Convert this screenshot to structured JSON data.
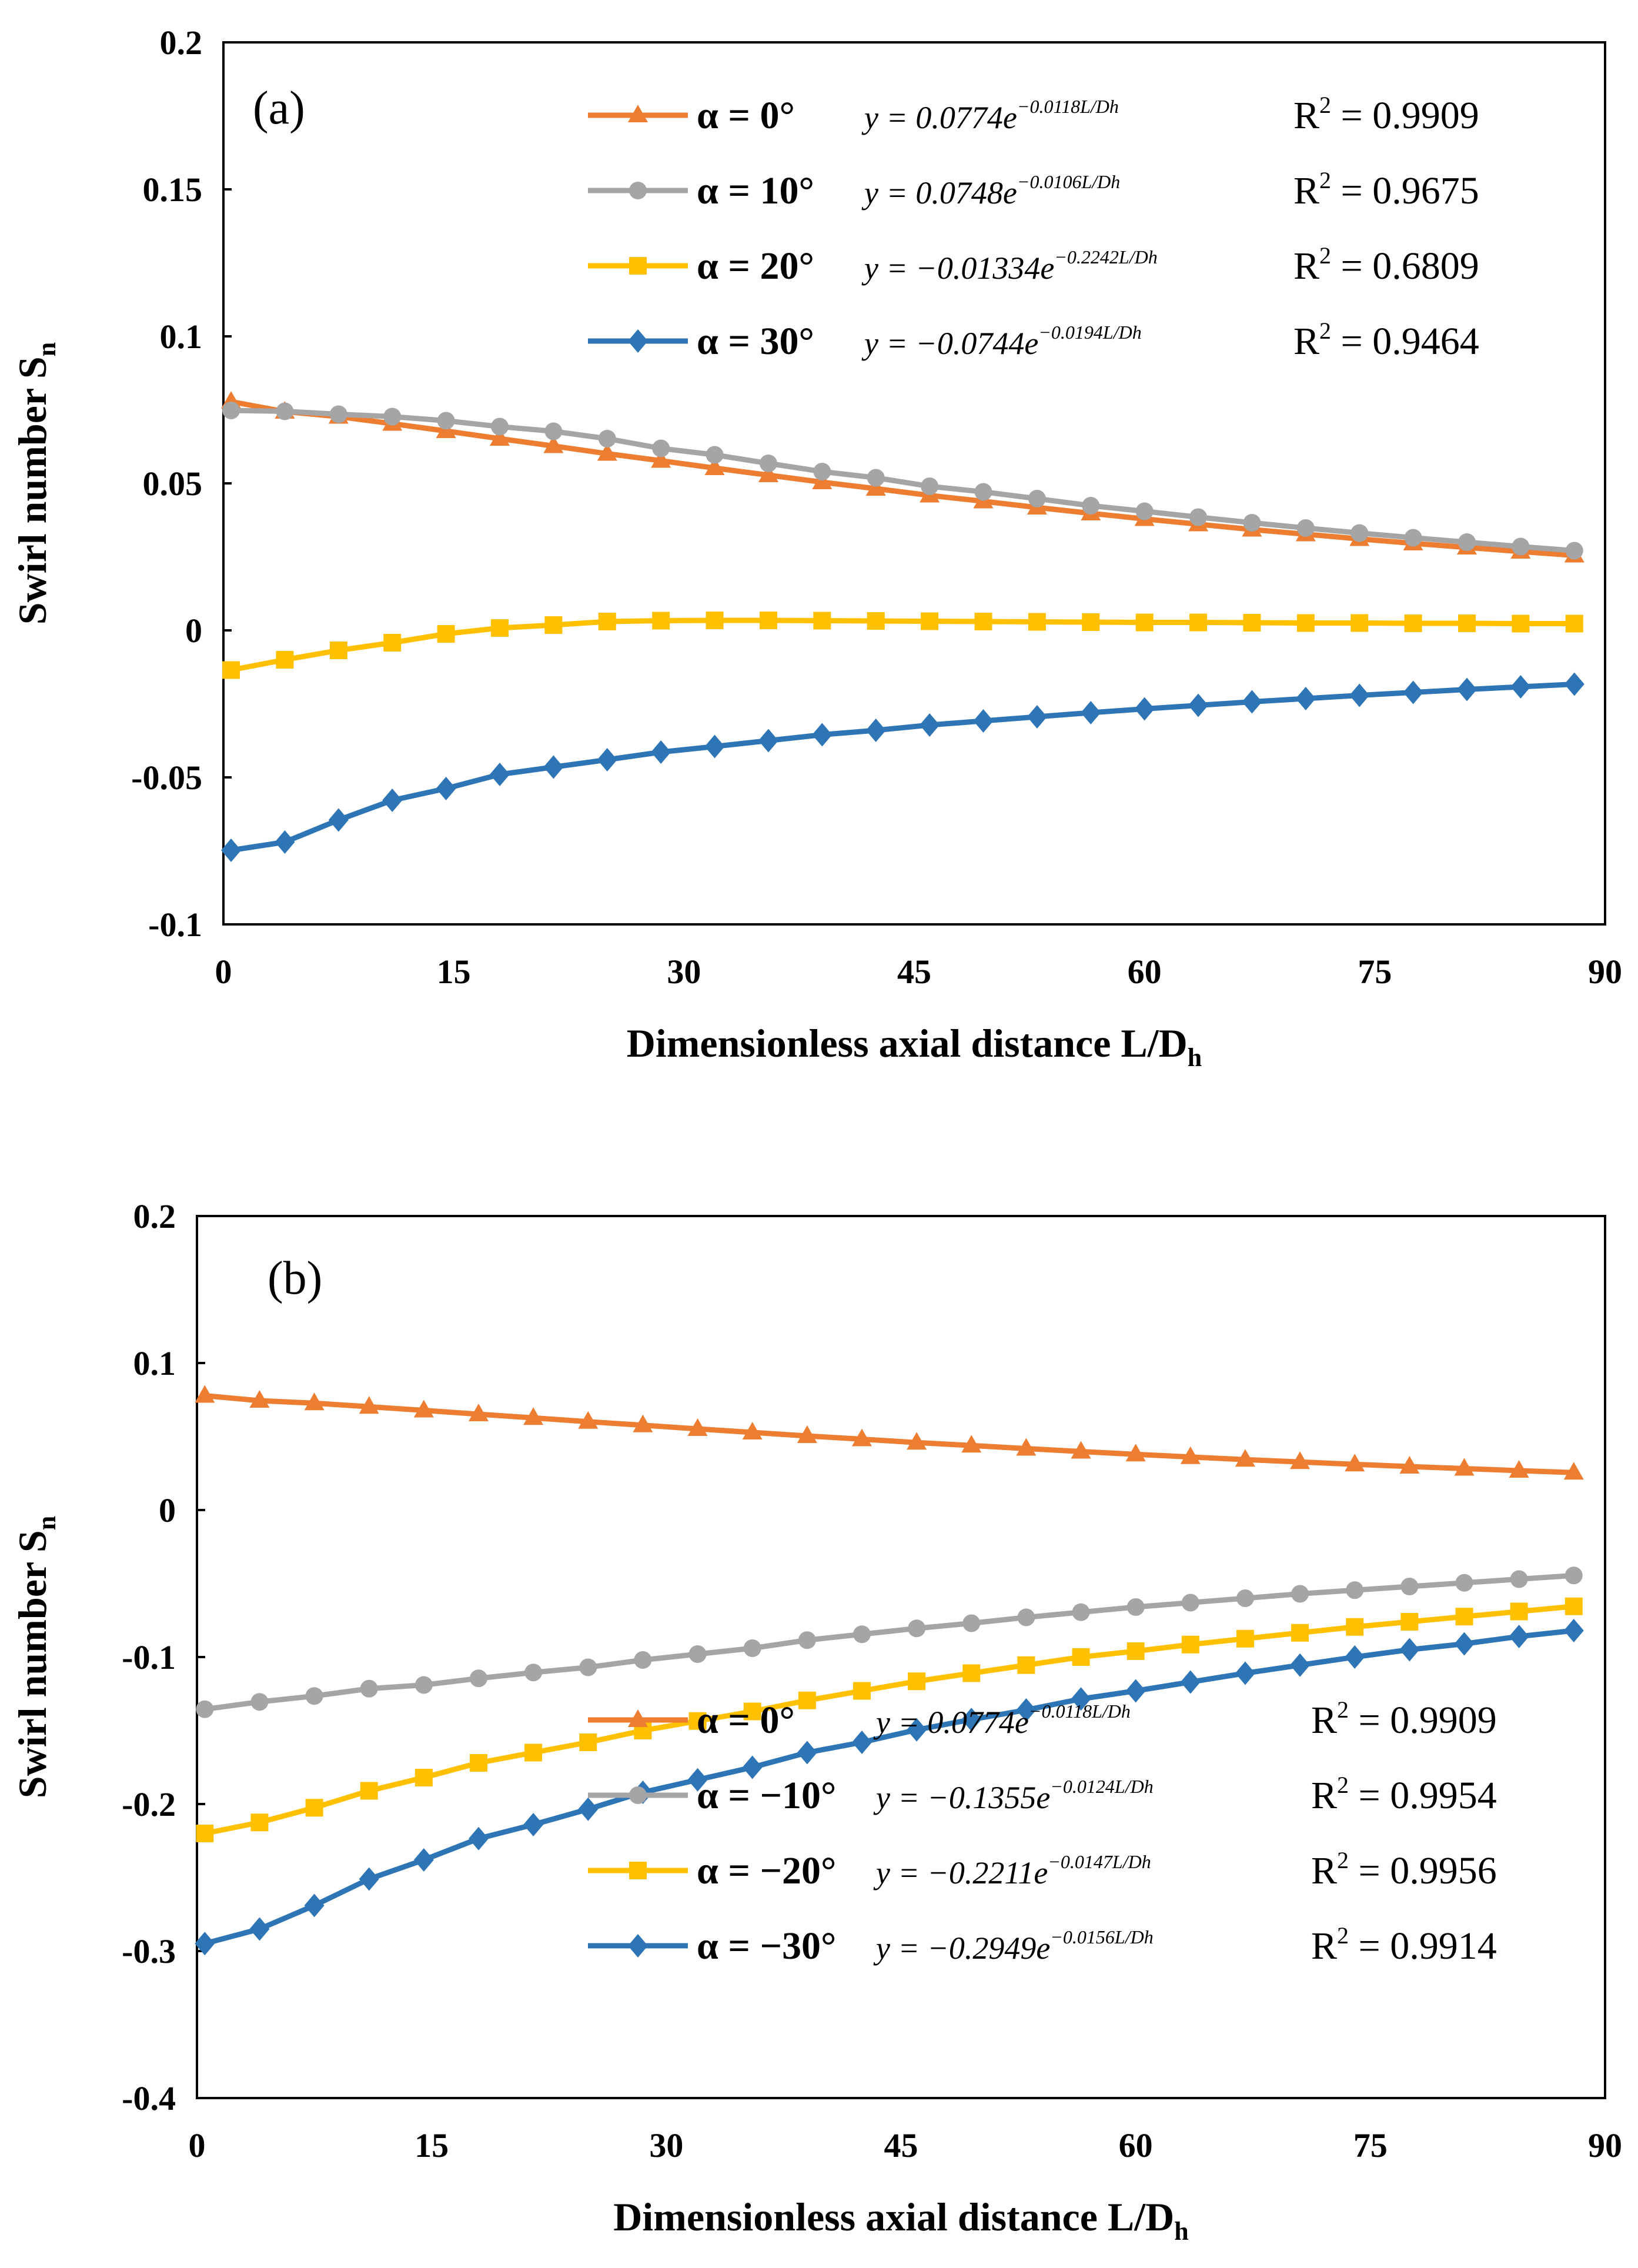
{
  "figure": {
    "x_axis_title": "Dimensionless axial distance L/D",
    "x_axis_title_sub": "h",
    "y_axis_title": "Swirl number S",
    "y_axis_title_sub": "n"
  },
  "chart_data": [
    {
      "panel_label": "(a)",
      "type": "line",
      "xlim": [
        0,
        90
      ],
      "ylim": [
        -0.1,
        0.2
      ],
      "x_ticks": [
        0,
        15,
        30,
        45,
        60,
        75,
        90
      ],
      "x_tick_labels": [
        "0",
        "15",
        "30",
        "45",
        "60",
        "75",
        "90"
      ],
      "y_ticks": [
        -0.1,
        -0.05,
        0,
        0.05,
        0.1,
        0.15,
        0.2
      ],
      "y_tick_labels": [
        "-0.1",
        "-0.05",
        "0",
        "0.05",
        "0.1",
        "0.15",
        "0.2"
      ],
      "legend_position": "top-right",
      "series": [
        {
          "name": "α = 0°",
          "color": "#ED7D31",
          "marker": "triangle",
          "fit": "y = 0.0774e",
          "fit_exp": "−0.0118L/Dh",
          "r2_label": "R",
          "r2_value": " = 0.9909",
          "x": [
            0.5,
            4,
            7.5,
            11,
            14.5,
            18,
            21.5,
            25,
            28.5,
            32,
            35.5,
            39,
            42.5,
            46,
            49.5,
            53,
            56.5,
            60,
            63.5,
            67,
            70.5,
            74,
            77.5,
            81,
            84.5,
            88
          ],
          "y": [
            0.0778,
            0.0744,
            0.0727,
            0.0703,
            0.0678,
            0.0652,
            0.0627,
            0.0601,
            0.0577,
            0.0552,
            0.0528,
            0.0504,
            0.0482,
            0.0459,
            0.0439,
            0.0418,
            0.0398,
            0.0379,
            0.0361,
            0.0343,
            0.0327,
            0.0311,
            0.0296,
            0.0282,
            0.0268,
            0.0255
          ]
        },
        {
          "name": "α = 10°",
          "color": "#A5A5A5",
          "marker": "circle",
          "fit": "y = 0.0748e",
          "fit_exp": "−0.0106L/Dh",
          "r2_label": "R",
          "r2_value": " = 0.9675",
          "x": [
            0.5,
            4,
            7.5,
            11,
            14.5,
            18,
            21.5,
            25,
            28.5,
            32,
            35.5,
            39,
            42.5,
            46,
            49.5,
            53,
            56.5,
            60,
            63.5,
            67,
            70.5,
            74,
            77.5,
            81,
            84.5,
            88
          ],
          "y": [
            0.0748,
            0.0745,
            0.0735,
            0.0727,
            0.0713,
            0.0693,
            0.0677,
            0.0652,
            0.0619,
            0.0597,
            0.0568,
            0.054,
            0.0519,
            0.049,
            0.0471,
            0.0448,
            0.0424,
            0.0405,
            0.0385,
            0.0366,
            0.0348,
            0.0331,
            0.0315,
            0.03,
            0.0285,
            0.0271
          ]
        },
        {
          "name": "α = 20°",
          "color": "#FFC000",
          "marker": "square",
          "fit": "y = −0.01334e",
          "fit_exp": "−0.2242L/Dh",
          "r2_label": "R",
          "r2_value": " = 0.6809",
          "x": [
            0.5,
            4,
            7.5,
            11,
            14.5,
            18,
            21.5,
            25,
            28.5,
            32,
            35.5,
            39,
            42.5,
            46,
            49.5,
            53,
            56.5,
            60,
            63.5,
            67,
            70.5,
            74,
            77.5,
            81,
            84.5,
            88
          ],
          "y": [
            -0.0135,
            -0.01,
            -0.0068,
            -0.0042,
            -0.0012,
            0.0008,
            0.0018,
            0.003,
            0.0033,
            0.0034,
            0.0034,
            0.0033,
            0.0032,
            0.0031,
            0.003,
            0.0029,
            0.0028,
            0.0027,
            0.0027,
            0.0026,
            0.0025,
            0.0025,
            0.0024,
            0.0024,
            0.0023,
            0.0023
          ]
        },
        {
          "name": "α = 30°",
          "color": "#2E75B6",
          "marker": "diamond",
          "fit": "y = −0.0744e",
          "fit_exp": "−0.0194L/Dh",
          "r2_label": "R",
          "r2_value": " = 0.9464",
          "x": [
            0.5,
            4,
            7.5,
            11,
            14.5,
            18,
            21.5,
            25,
            28.5,
            32,
            35.5,
            39,
            42.5,
            46,
            49.5,
            53,
            56.5,
            60,
            63.5,
            67,
            70.5,
            74,
            77.5,
            81,
            84.5,
            88
          ],
          "y": [
            -0.0748,
            -0.072,
            -0.0645,
            -0.0578,
            -0.0538,
            -0.049,
            -0.0465,
            -0.044,
            -0.0414,
            -0.0395,
            -0.0375,
            -0.0355,
            -0.034,
            -0.0322,
            -0.0308,
            -0.0294,
            -0.028,
            -0.0267,
            -0.0255,
            -0.0243,
            -0.0232,
            -0.0221,
            -0.0211,
            -0.0201,
            -0.0192,
            -0.0183
          ]
        }
      ]
    },
    {
      "panel_label": "(b)",
      "type": "line",
      "xlim": [
        0,
        90
      ],
      "ylim": [
        -0.4,
        0.2
      ],
      "x_ticks": [
        0,
        15,
        30,
        45,
        60,
        75,
        90
      ],
      "x_tick_labels": [
        "0",
        "15",
        "30",
        "45",
        "60",
        "75",
        "90"
      ],
      "y_ticks": [
        -0.4,
        -0.3,
        -0.2,
        -0.1,
        0,
        0.1,
        0.2
      ],
      "y_tick_labels": [
        "-0.4",
        "-0.3",
        "-0.2",
        "-0.1",
        "0",
        "0.1",
        "0.2"
      ],
      "legend_position": "bottom-right",
      "series": [
        {
          "name": "α = 0°",
          "color": "#ED7D31",
          "marker": "triangle",
          "fit": "y = 0.0774e",
          "fit_exp": "−0.0118L/Dh",
          "r2_label": "R",
          "r2_value": " = 0.9909",
          "x": [
            0.5,
            4,
            7.5,
            11,
            14.5,
            18,
            21.5,
            25,
            28.5,
            32,
            35.5,
            39,
            42.5,
            46,
            49.5,
            53,
            56.5,
            60,
            63.5,
            67,
            70.5,
            74,
            77.5,
            81,
            84.5,
            88
          ],
          "y": [
            0.0778,
            0.0744,
            0.0727,
            0.0703,
            0.0678,
            0.0652,
            0.0627,
            0.0601,
            0.0577,
            0.0552,
            0.0528,
            0.0504,
            0.0482,
            0.0459,
            0.0439,
            0.0418,
            0.0398,
            0.0379,
            0.0361,
            0.0343,
            0.0327,
            0.0311,
            0.0296,
            0.0282,
            0.0268,
            0.0255
          ]
        },
        {
          "name": "α = −10°",
          "color": "#A5A5A5",
          "marker": "circle",
          "fit": "y = −0.1355e",
          "fit_exp": "−0.0124L/Dh",
          "r2_label": "R",
          "r2_value": " = 0.9954",
          "x": [
            0.5,
            4,
            7.5,
            11,
            14.5,
            18,
            21.5,
            25,
            28.5,
            32,
            35.5,
            39,
            42.5,
            46,
            49.5,
            53,
            56.5,
            60,
            63.5,
            67,
            70.5,
            74,
            77.5,
            81,
            84.5,
            88
          ],
          "y": [
            -0.1355,
            -0.1305,
            -0.1265,
            -0.1215,
            -0.119,
            -0.1145,
            -0.1105,
            -0.107,
            -0.102,
            -0.098,
            -0.094,
            -0.0885,
            -0.0845,
            -0.0805,
            -0.077,
            -0.073,
            -0.0695,
            -0.066,
            -0.063,
            -0.06,
            -0.057,
            -0.0545,
            -0.052,
            -0.0495,
            -0.047,
            -0.0445
          ]
        },
        {
          "name": "α = −20°",
          "color": "#FFC000",
          "marker": "square",
          "fit": "y = −0.2211e",
          "fit_exp": "−0.0147L/Dh",
          "r2_label": "R",
          "r2_value": " = 0.9956",
          "x": [
            0.5,
            4,
            7.5,
            11,
            14.5,
            18,
            21.5,
            25,
            28.5,
            32,
            35.5,
            39,
            42.5,
            46,
            49.5,
            53,
            56.5,
            60,
            63.5,
            67,
            70.5,
            74,
            77.5,
            81,
            84.5,
            88
          ],
          "y": [
            -0.22,
            -0.2125,
            -0.2025,
            -0.191,
            -0.182,
            -0.172,
            -0.165,
            -0.158,
            -0.15,
            -0.1435,
            -0.137,
            -0.1295,
            -0.123,
            -0.1165,
            -0.111,
            -0.1055,
            -0.1,
            -0.096,
            -0.0915,
            -0.0875,
            -0.0835,
            -0.0795,
            -0.076,
            -0.0725,
            -0.069,
            -0.0655
          ]
        },
        {
          "name": "α = −30°",
          "color": "#2E75B6",
          "marker": "diamond",
          "fit": "y = −0.2949e",
          "fit_exp": "−0.0156L/Dh",
          "r2_label": "R",
          "r2_value": " = 0.9914",
          "x": [
            0.5,
            4,
            7.5,
            11,
            14.5,
            18,
            21.5,
            25,
            28.5,
            32,
            35.5,
            39,
            42.5,
            46,
            49.5,
            53,
            56.5,
            60,
            63.5,
            67,
            70.5,
            74,
            77.5,
            81,
            84.5,
            88
          ],
          "y": [
            -0.2949,
            -0.285,
            -0.269,
            -0.251,
            -0.238,
            -0.2235,
            -0.214,
            -0.2035,
            -0.192,
            -0.1835,
            -0.175,
            -0.165,
            -0.158,
            -0.1495,
            -0.1425,
            -0.136,
            -0.1285,
            -0.123,
            -0.117,
            -0.111,
            -0.1055,
            -0.1,
            -0.095,
            -0.091,
            -0.086,
            -0.082
          ]
        }
      ]
    }
  ]
}
